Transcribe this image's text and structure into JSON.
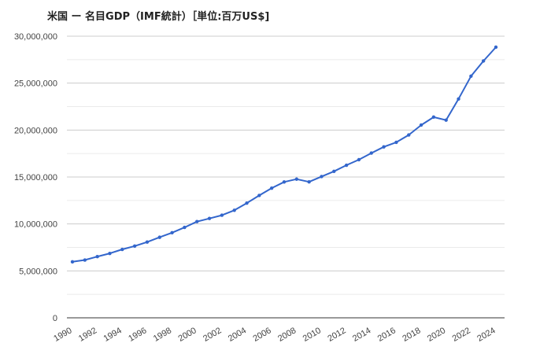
{
  "chart_data": {
    "type": "line",
    "title": "米国 ー 名目GDP（IMF統計）［単位:百万US$]",
    "xlabel": "",
    "ylabel": "",
    "ylim": [
      0,
      30000000
    ],
    "y_ticks": [
      0,
      5000000,
      10000000,
      15000000,
      20000000,
      25000000,
      30000000
    ],
    "y_tick_labels": [
      "0",
      "5,000,000",
      "10,000,000",
      "15,000,000",
      "20,000,000",
      "25,000,000",
      "30,000,000"
    ],
    "x_tick_labels": [
      "1990",
      "1992",
      "1994",
      "1996",
      "1998",
      "2000",
      "2002",
      "2004",
      "2006",
      "2008",
      "2010",
      "2012",
      "2014",
      "2016",
      "2018",
      "2020",
      "2022",
      "2024"
    ],
    "grid": true,
    "legend": "none",
    "line_color": "#3366cc",
    "x": [
      1990,
      1991,
      1992,
      1993,
      1994,
      1995,
      1996,
      1997,
      1998,
      1999,
      2000,
      2001,
      2002,
      2003,
      2004,
      2005,
      2006,
      2007,
      2008,
      2009,
      2010,
      2011,
      2012,
      2013,
      2014,
      2015,
      2016,
      2017,
      2018,
      2019,
      2020,
      2021,
      2022,
      2023,
      2024
    ],
    "series": [
      {
        "values": [
          5963000,
          6158000,
          6520000,
          6859000,
          7287000,
          7640000,
          8073000,
          8578000,
          9063000,
          9631000,
          10251000,
          10582000,
          10929000,
          11457000,
          12217000,
          13039000,
          13815000,
          14475000,
          14770000,
          14478000,
          15049000,
          15600000,
          16254000,
          16843000,
          17551000,
          18206000,
          18695000,
          19477000,
          20533000,
          21381000,
          21060000,
          23315000,
          25744000,
          27361000,
          28830000
        ]
      }
    ]
  }
}
